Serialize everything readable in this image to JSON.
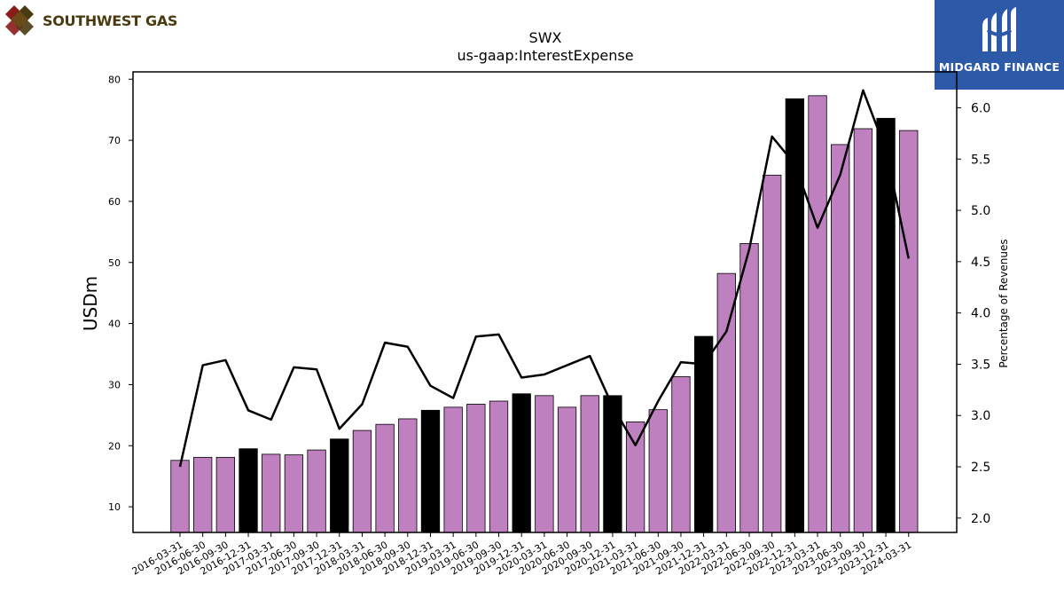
{
  "branding": {
    "company_logo_text": "SOUTHWEST GAS",
    "publisher_logo_text": "MIDGARD FINANCE"
  },
  "colors": {
    "bar_default": "#bf80bf",
    "bar_highlight": "#000000",
    "line": "#000000",
    "publisher_bg": "#2c5aa8"
  },
  "chart_data": {
    "type": "bar",
    "title": "SWX",
    "subtitle": "us-gaap:InterestExpense",
    "ylabel": "USDm",
    "ylabel_right": "Percentage of Revenues",
    "ylim": [
      5.8,
      81.2
    ],
    "ylim_right": [
      1.86,
      6.35
    ],
    "yticks": [
      10,
      20,
      30,
      40,
      50,
      60,
      70,
      80
    ],
    "yticks_right": [
      "2.0",
      "2.5",
      "3.0",
      "3.5",
      "4.0",
      "4.5",
      "5.0",
      "5.5",
      "6.0"
    ],
    "grid": false,
    "categories": [
      "2016-03-31",
      "2016-06-30",
      "2016-09-30",
      "2016-12-31",
      "2017-03-31",
      "2017-06-30",
      "2017-09-30",
      "2017-12-31",
      "2018-03-31",
      "2018-06-30",
      "2018-09-30",
      "2018-12-31",
      "2019-03-31",
      "2019-06-30",
      "2019-09-30",
      "2019-12-31",
      "2020-03-31",
      "2020-06-30",
      "2020-09-30",
      "2020-12-31",
      "2021-03-31",
      "2021-06-30",
      "2021-09-30",
      "2021-12-31",
      "2022-03-31",
      "2022-06-30",
      "2022-09-30",
      "2022-12-31",
      "2023-03-31",
      "2023-06-30",
      "2023-09-30",
      "2023-12-31",
      "2024-03-31"
    ],
    "series": [
      {
        "axis": "left",
        "kind": "bar",
        "values": [
          17.6,
          18.1,
          18.1,
          19.5,
          18.6,
          18.5,
          19.3,
          21.1,
          22.5,
          23.5,
          24.4,
          25.8,
          26.3,
          26.8,
          27.3,
          28.5,
          28.2,
          26.3,
          28.2,
          28.2,
          23.9,
          25.9,
          31.3,
          37.9,
          48.2,
          53.1,
          64.3,
          76.8,
          77.3,
          69.3,
          71.9,
          73.6,
          71.6
        ],
        "highlight": [
          false,
          false,
          false,
          true,
          false,
          false,
          false,
          true,
          false,
          false,
          false,
          true,
          false,
          false,
          false,
          true,
          false,
          false,
          false,
          true,
          false,
          false,
          false,
          true,
          false,
          false,
          false,
          true,
          false,
          false,
          false,
          true,
          false
        ]
      },
      {
        "axis": "right",
        "kind": "line",
        "values": [
          2.5,
          3.49,
          3.54,
          3.05,
          2.96,
          3.47,
          3.45,
          2.87,
          3.11,
          3.71,
          3.67,
          3.29,
          3.17,
          3.77,
          3.79,
          3.37,
          3.4,
          3.49,
          3.58,
          3.09,
          2.71,
          3.14,
          3.52,
          3.5,
          3.82,
          4.62,
          5.72,
          5.45,
          4.83,
          5.35,
          6.17,
          5.59,
          4.53
        ]
      }
    ]
  }
}
